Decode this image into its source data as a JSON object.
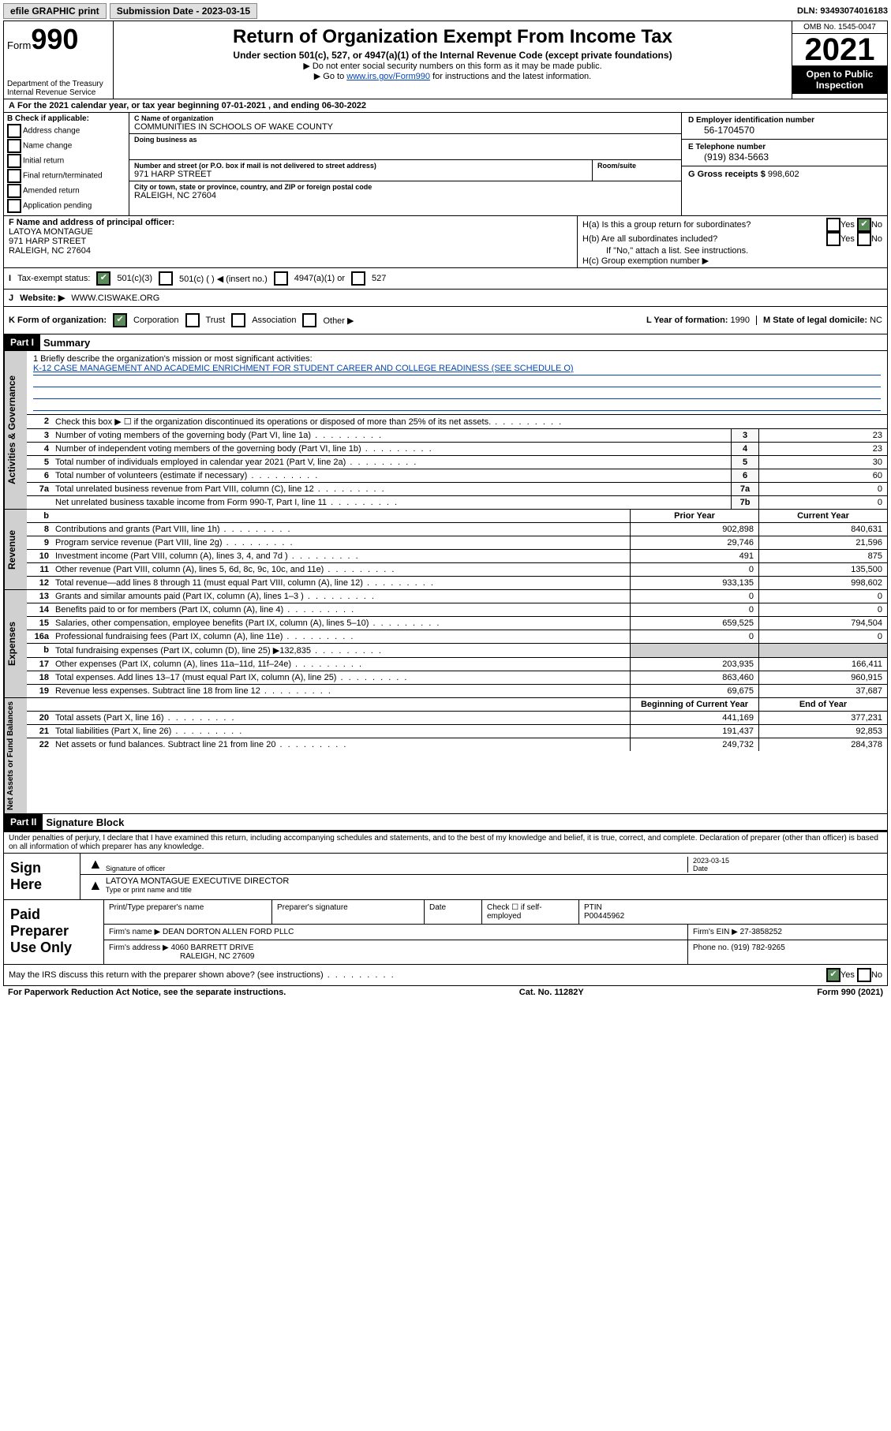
{
  "topbar": {
    "efile": "efile GRAPHIC print",
    "submission_label": "Submission Date - 2023-03-15",
    "dln": "DLN: 93493074016183"
  },
  "header": {
    "form_prefix": "Form",
    "form_number": "990",
    "dept": "Department of the Treasury\nInternal Revenue Service",
    "title": "Return of Organization Exempt From Income Tax",
    "subtitle": "Under section 501(c), 527, or 4947(a)(1) of the Internal Revenue Code (except private foundations)",
    "note1": "Do not enter social security numbers on this form as it may be made public.",
    "note2_pre": "Go to ",
    "note2_link": "www.irs.gov/Form990",
    "note2_post": " for instructions and the latest information.",
    "omb": "OMB No. 1545-0047",
    "year": "2021",
    "open": "Open to Public Inspection"
  },
  "rowA": "For the 2021 calendar year, or tax year beginning 07-01-2021  , and ending 06-30-2022",
  "B": {
    "title": "B Check if applicable:",
    "items": [
      "Address change",
      "Name change",
      "Initial return",
      "Final return/terminated",
      "Amended return",
      "Application pending"
    ]
  },
  "C": {
    "name_lbl": "C Name of organization",
    "name": "COMMUNITIES IN SCHOOLS OF WAKE COUNTY",
    "dba_lbl": "Doing business as",
    "dba": "",
    "street_lbl": "Number and street (or P.O. box if mail is not delivered to street address)",
    "room_lbl": "Room/suite",
    "street": "971 HARP STREET",
    "city_lbl": "City or town, state or province, country, and ZIP or foreign postal code",
    "city": "RALEIGH, NC  27604"
  },
  "D": {
    "ein_lbl": "D Employer identification number",
    "ein": "56-1704570",
    "phone_lbl": "E Telephone number",
    "phone": "(919) 834-5663",
    "gross_lbl": "G Gross receipts $",
    "gross": "998,602"
  },
  "F": {
    "lbl": "F Name and address of principal officer:",
    "name": "LATOYA MONTAGUE",
    "street": "971 HARP STREET",
    "city": "RALEIGH, NC  27604"
  },
  "H": {
    "a": "H(a)  Is this a group return for subordinates?",
    "b": "H(b)  Are all subordinates included?",
    "b_note": "If \"No,\" attach a list. See instructions.",
    "c": "H(c)  Group exemption number ▶"
  },
  "I": {
    "lbl": "Tax-exempt status:",
    "opts": [
      "501(c)(3)",
      "501(c) (   ) ◀ (insert no.)",
      "4947(a)(1) or",
      "527"
    ]
  },
  "J": {
    "lbl": "Website: ▶",
    "val": "WWW.CISWAKE.ORG"
  },
  "K": {
    "lbl": "K Form of organization:",
    "opts": [
      "Corporation",
      "Trust",
      "Association",
      "Other ▶"
    ]
  },
  "L": {
    "lbl": "L Year of formation:",
    "val": "1990"
  },
  "M": {
    "lbl": "M State of legal domicile:",
    "val": "NC"
  },
  "part1": {
    "hdr": "Part I",
    "title": "Summary"
  },
  "mission": {
    "q": "1   Briefly describe the organization's mission or most significant activities:",
    "text": "K-12 CASE MANAGEMENT AND ACADEMIC ENRICHMENT FOR STUDENT CAREER AND COLLEGE READINESS (SEE SCHEDULE O)"
  },
  "gov_lines": [
    {
      "n": "2",
      "d": "Check this box ▶ ☐  if the organization discontinued its operations or disposed of more than 25% of its net assets.",
      "box": "",
      "v": ""
    },
    {
      "n": "3",
      "d": "Number of voting members of the governing body (Part VI, line 1a)",
      "box": "3",
      "v": "23"
    },
    {
      "n": "4",
      "d": "Number of independent voting members of the governing body (Part VI, line 1b)",
      "box": "4",
      "v": "23"
    },
    {
      "n": "5",
      "d": "Total number of individuals employed in calendar year 2021 (Part V, line 2a)",
      "box": "5",
      "v": "30"
    },
    {
      "n": "6",
      "d": "Total number of volunteers (estimate if necessary)",
      "box": "6",
      "v": "60"
    },
    {
      "n": "7a",
      "d": "Total unrelated business revenue from Part VIII, column (C), line 12",
      "box": "7a",
      "v": "0"
    },
    {
      "n": "",
      "d": "Net unrelated business taxable income from Form 990-T, Part I, line 11",
      "box": "7b",
      "v": "0"
    }
  ],
  "col_hdr": {
    "b": "b",
    "prior": "Prior Year",
    "curr": "Current Year"
  },
  "rev_lines": [
    {
      "n": "8",
      "d": "Contributions and grants (Part VIII, line 1h)",
      "p": "902,898",
      "c": "840,631"
    },
    {
      "n": "9",
      "d": "Program service revenue (Part VIII, line 2g)",
      "p": "29,746",
      "c": "21,596"
    },
    {
      "n": "10",
      "d": "Investment income (Part VIII, column (A), lines 3, 4, and 7d )",
      "p": "491",
      "c": "875"
    },
    {
      "n": "11",
      "d": "Other revenue (Part VIII, column (A), lines 5, 6d, 8c, 9c, 10c, and 11e)",
      "p": "0",
      "c": "135,500"
    },
    {
      "n": "12",
      "d": "Total revenue—add lines 8 through 11 (must equal Part VIII, column (A), line 12)",
      "p": "933,135",
      "c": "998,602"
    }
  ],
  "exp_lines": [
    {
      "n": "13",
      "d": "Grants and similar amounts paid (Part IX, column (A), lines 1–3 )",
      "p": "0",
      "c": "0"
    },
    {
      "n": "14",
      "d": "Benefits paid to or for members (Part IX, column (A), line 4)",
      "p": "0",
      "c": "0"
    },
    {
      "n": "15",
      "d": "Salaries, other compensation, employee benefits (Part IX, column (A), lines 5–10)",
      "p": "659,525",
      "c": "794,504"
    },
    {
      "n": "16a",
      "d": "Professional fundraising fees (Part IX, column (A), line 11e)",
      "p": "0",
      "c": "0"
    },
    {
      "n": "b",
      "d": "Total fundraising expenses (Part IX, column (D), line 25) ▶132,835",
      "p": "",
      "c": "",
      "gray": true
    },
    {
      "n": "17",
      "d": "Other expenses (Part IX, column (A), lines 11a–11d, 11f–24e)",
      "p": "203,935",
      "c": "166,411"
    },
    {
      "n": "18",
      "d": "Total expenses. Add lines 13–17 (must equal Part IX, column (A), line 25)",
      "p": "863,460",
      "c": "960,915"
    },
    {
      "n": "19",
      "d": "Revenue less expenses. Subtract line 18 from line 12",
      "p": "69,675",
      "c": "37,687"
    }
  ],
  "na_hdr": {
    "beg": "Beginning of Current Year",
    "end": "End of Year"
  },
  "na_lines": [
    {
      "n": "20",
      "d": "Total assets (Part X, line 16)",
      "p": "441,169",
      "c": "377,231"
    },
    {
      "n": "21",
      "d": "Total liabilities (Part X, line 26)",
      "p": "191,437",
      "c": "92,853"
    },
    {
      "n": "22",
      "d": "Net assets or fund balances. Subtract line 21 from line 20",
      "p": "249,732",
      "c": "284,378"
    }
  ],
  "part2": {
    "hdr": "Part II",
    "title": "Signature Block"
  },
  "penalty": "Under penalties of perjury, I declare that I have examined this return, including accompanying schedules and statements, and to the best of my knowledge and belief, it is true, correct, and complete. Declaration of preparer (other than officer) is based on all information of which preparer has any knowledge.",
  "sign": {
    "lbl": "Sign Here",
    "sig_lbl": "Signature of officer",
    "date_lbl": "Date",
    "date": "2023-03-15",
    "name": "LATOYA MONTAGUE  EXECUTIVE DIRECTOR",
    "name_lbl": "Type or print name and title"
  },
  "prep": {
    "lbl": "Paid Preparer Use Only",
    "h1": "Print/Type preparer's name",
    "h2": "Preparer's signature",
    "h3": "Date",
    "h4_pre": "Check ☐ if self-employed",
    "h5": "PTIN",
    "ptin": "P00445962",
    "firm_name_lbl": "Firm's name   ▶",
    "firm_name": "DEAN DORTON ALLEN FORD PLLC",
    "firm_ein_lbl": "Firm's EIN ▶",
    "firm_ein": "27-3858252",
    "firm_addr_lbl": "Firm's address ▶",
    "firm_addr": "4060 BARRETT DRIVE",
    "firm_city": "RALEIGH, NC  27609",
    "phone_lbl": "Phone no.",
    "phone": "(919) 782-9265"
  },
  "discuss": "May the IRS discuss this return with the preparer shown above? (see instructions)",
  "footer": {
    "l": "For Paperwork Reduction Act Notice, see the separate instructions.",
    "m": "Cat. No. 11282Y",
    "r": "Form 990 (2021)"
  }
}
